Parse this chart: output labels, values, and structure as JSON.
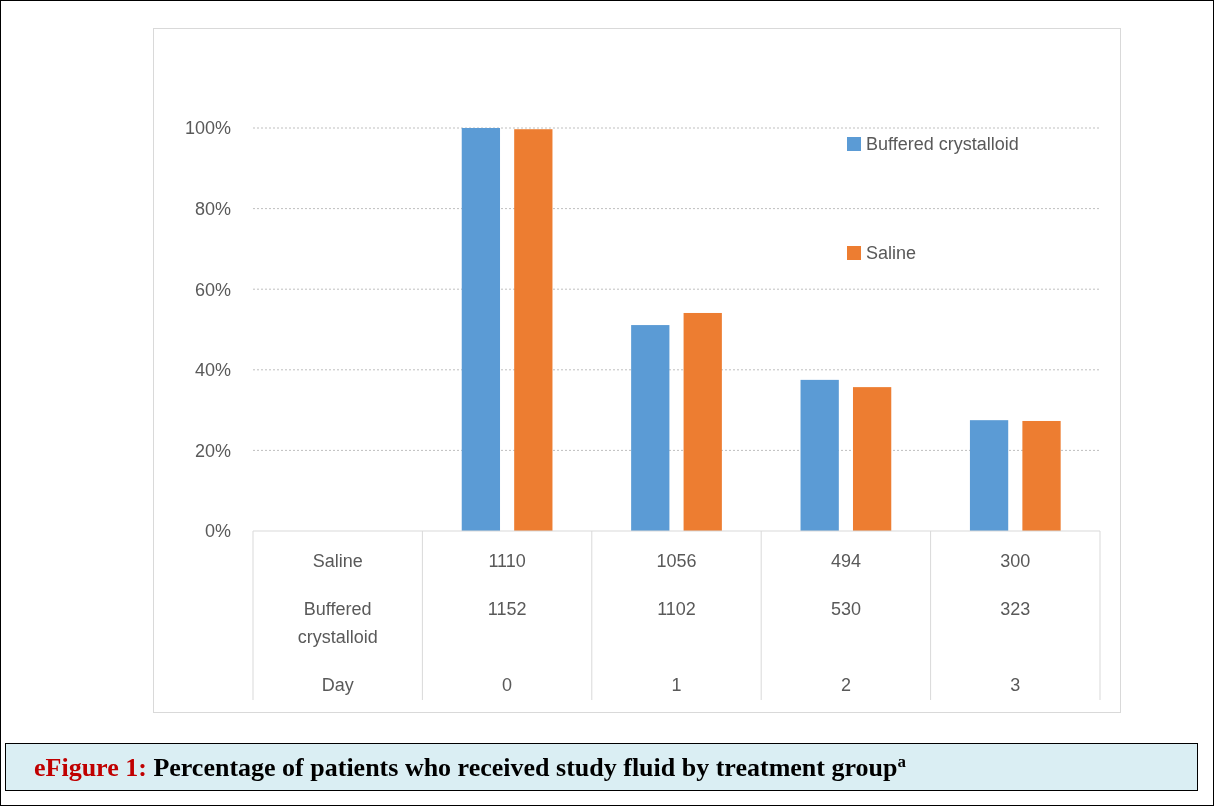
{
  "chart_data": {
    "type": "bar",
    "title": "eFigure 1: Percentage of patients who received study fluid by treatment group$^{a}$",
    "categories": [
      "Saline\nBuffered crystalloid\nDay",
      "1110\n1152\n0",
      "1056\n1102\n1",
      "494\n530\n2",
      "300\n323\n3"
    ],
    "series": [
      {
        "name": "Buffered crystalloid",
        "color": "#5b9bd5",
        "values": [
          null,
          100,
          51.1,
          37.5,
          27.5
        ]
      },
      {
        "name": "Saline",
        "color": "#ed7d31",
        "values": [
          null,
          99.7,
          54.1,
          35.7,
          27.3
        ]
      }
    ],
    "ylim": [
      0,
      100
    ],
    "yticks": [
      {
        "value": 0,
        "label": "0%"
      },
      {
        "value": 20,
        "label": "20%"
      },
      {
        "value": 40,
        "label": "40%"
      },
      {
        "value": 60,
        "label": "60%"
      },
      {
        "value": 80,
        "label": "80%"
      },
      {
        "value": 100,
        "label": "100%"
      }
    ],
    "grid": "y",
    "legend": "top right"
  }
}
